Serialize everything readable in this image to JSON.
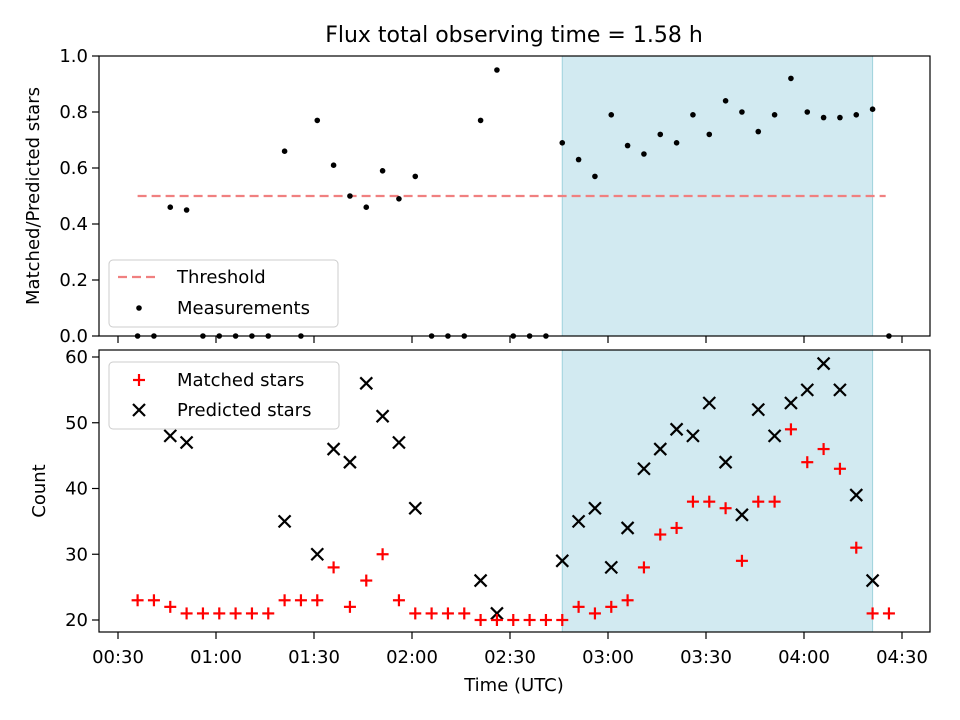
{
  "title": "Flux total observing time = 1.58 h",
  "xlabel": "Time (UTC)",
  "colors": {
    "threshold": "#f08080",
    "measurement": "#000000",
    "matched": "#ff0000",
    "predicted": "#000000",
    "span_fill": "#add8e6"
  },
  "x_ticks": [
    "00:30",
    "01:00",
    "01:30",
    "02:00",
    "02:30",
    "03:00",
    "03:30",
    "04:00",
    "04:30"
  ],
  "chart_data": [
    {
      "type": "scatter",
      "ylabel": "Matched/Predicted stars",
      "ylim": [
        0,
        1.0
      ],
      "y_ticks": [
        "0.0",
        "0.2",
        "0.4",
        "0.6",
        "0.8",
        "1.0"
      ],
      "legend_position": "lower-left",
      "threshold": {
        "name": "Threshold",
        "value": 0.5,
        "x_start": "00:36",
        "x_end": "04:25"
      },
      "highlight_span": {
        "x_start": "02:46",
        "x_end": "04:21"
      },
      "series": [
        {
          "name": "Measurements",
          "x": [
            "00:36",
            "00:41",
            "00:46",
            "00:51",
            "00:56",
            "01:01",
            "01:06",
            "01:11",
            "01:16",
            "01:21",
            "01:26",
            "01:31",
            "01:36",
            "01:41",
            "01:46",
            "01:51",
            "01:56",
            "02:01",
            "02:06",
            "02:11",
            "02:16",
            "02:21",
            "02:26",
            "02:31",
            "02:36",
            "02:41",
            "02:46",
            "02:51",
            "02:56",
            "03:01",
            "03:06",
            "03:11",
            "03:16",
            "03:21",
            "03:26",
            "03:31",
            "03:36",
            "03:41",
            "03:46",
            "03:51",
            "03:56",
            "04:01",
            "04:06",
            "04:11",
            "04:16",
            "04:21",
            "04:26"
          ],
          "y": [
            0,
            0,
            0.46,
            0.45,
            0,
            0,
            0,
            0,
            0,
            0.66,
            0,
            0.77,
            0.61,
            0.5,
            0.46,
            0.59,
            0.49,
            0.57,
            0,
            0,
            0,
            0.77,
            0.95,
            0,
            0,
            0,
            0.69,
            0.63,
            0.57,
            0.79,
            0.68,
            0.65,
            0.72,
            0.69,
            0.79,
            0.72,
            0.84,
            0.8,
            0.73,
            0.79,
            0.92,
            0.8,
            0.78,
            0.78,
            0.79,
            0.81,
            0
          ]
        }
      ]
    },
    {
      "type": "scatter",
      "ylabel": "Count",
      "ylim": [
        18,
        61
      ],
      "y_ticks": [
        "20",
        "30",
        "40",
        "50",
        "60"
      ],
      "legend_position": "upper-left",
      "highlight_span": {
        "x_start": "02:46",
        "x_end": "04:21"
      },
      "series": [
        {
          "name": "Matched stars",
          "x": [
            "00:36",
            "00:41",
            "00:46",
            "00:51",
            "00:56",
            "01:01",
            "01:06",
            "01:11",
            "01:16",
            "01:21",
            "01:26",
            "01:31",
            "01:36",
            "01:41",
            "01:46",
            "01:51",
            "01:56",
            "02:01",
            "02:06",
            "02:11",
            "02:16",
            "02:21",
            "02:26",
            "02:31",
            "02:36",
            "02:41",
            "02:46",
            "02:51",
            "02:56",
            "03:01",
            "03:06",
            "03:11",
            "03:16",
            "03:21",
            "03:26",
            "03:31",
            "03:36",
            "03:41",
            "03:46",
            "03:51",
            "03:56",
            "04:01",
            "04:06",
            "04:11",
            "04:16",
            "04:21",
            "04:26"
          ],
          "y": [
            23,
            23,
            22,
            21,
            21,
            21,
            21,
            21,
            21,
            23,
            23,
            23,
            28,
            22,
            26,
            30,
            23,
            21,
            21,
            21,
            21,
            20,
            20,
            20,
            20,
            20,
            20,
            22,
            21,
            22,
            23,
            28,
            33,
            34,
            38,
            38,
            37,
            29,
            38,
            38,
            49,
            44,
            46,
            43,
            31,
            21,
            21
          ]
        },
        {
          "name": "Predicted stars",
          "x": [
            "00:46",
            "00:51",
            "01:21",
            "01:31",
            "01:36",
            "01:41",
            "01:46",
            "01:51",
            "01:56",
            "02:01",
            "02:21",
            "02:26",
            "02:46",
            "02:51",
            "02:56",
            "03:01",
            "03:06",
            "03:11",
            "03:16",
            "03:21",
            "03:26",
            "03:31",
            "03:36",
            "03:41",
            "03:46",
            "03:51",
            "03:56",
            "04:01",
            "04:06",
            "04:11",
            "04:16",
            "04:21"
          ],
          "y": [
            48,
            47,
            35,
            30,
            46,
            44,
            56,
            51,
            47,
            37,
            26,
            21,
            29,
            35,
            37,
            28,
            34,
            43,
            46,
            49,
            48,
            53,
            44,
            36,
            52,
            48,
            53,
            55,
            59,
            55,
            39,
            26
          ]
        }
      ]
    }
  ]
}
